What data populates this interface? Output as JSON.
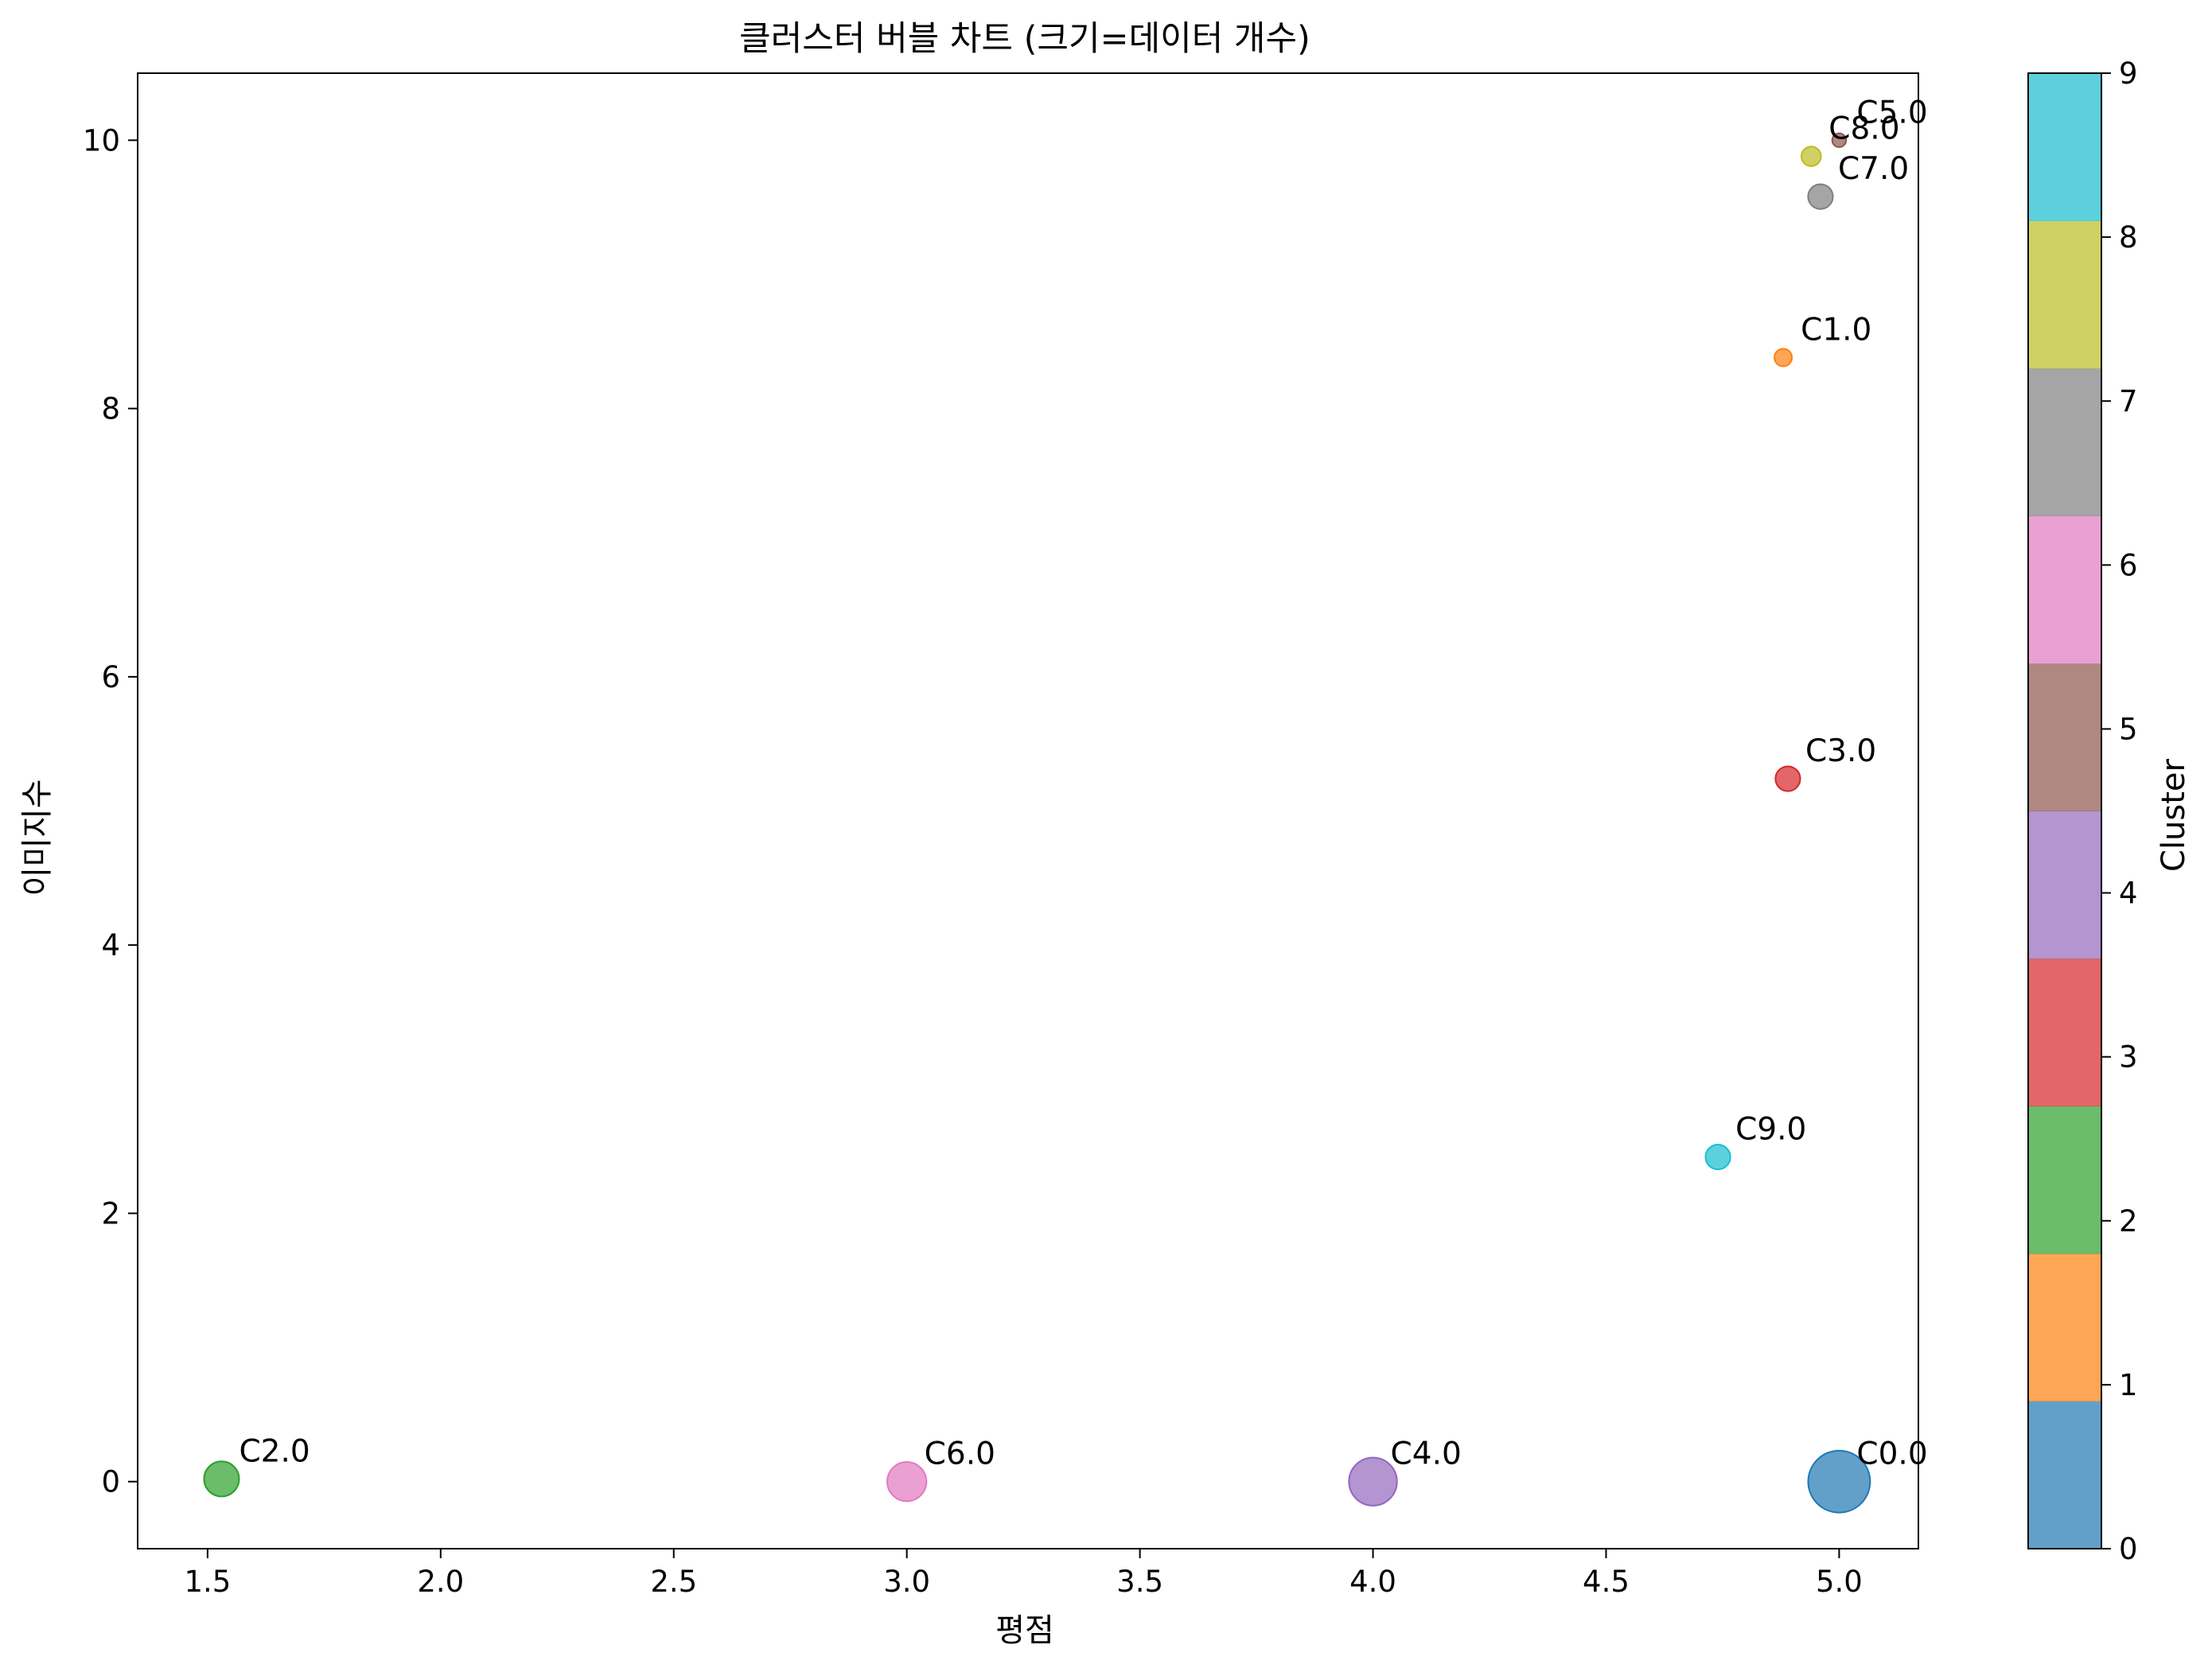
{
  "chart_data": {
    "type": "scatter",
    "title": "클러스터 버블 차트 (크기=데이터 개수)",
    "xlabel": "평점",
    "ylabel": "이미지수",
    "xlim": [
      1.35,
      5.17
    ],
    "ylim": [
      -0.5,
      10.5
    ],
    "xticks": [
      "1.5",
      "2.0",
      "2.5",
      "3.0",
      "3.5",
      "4.0",
      "4.5",
      "5.0"
    ],
    "yticks": [
      "0",
      "2",
      "4",
      "6",
      "8",
      "10"
    ],
    "grid": false,
    "points": [
      {
        "label": "C0.0",
        "cluster": 0,
        "x": 5.0,
        "y": 0.0,
        "size": 5.0
      },
      {
        "label": "C1.0",
        "cluster": 1,
        "x": 4.88,
        "y": 8.38,
        "size": 0.4
      },
      {
        "label": "C2.0",
        "cluster": 2,
        "x": 1.53,
        "y": 0.02,
        "size": 1.6
      },
      {
        "label": "C3.0",
        "cluster": 3,
        "x": 4.89,
        "y": 5.24,
        "size": 0.8
      },
      {
        "label": "C4.0",
        "cluster": 4,
        "x": 4.0,
        "y": 0.0,
        "size": 3.0
      },
      {
        "label": "C5.0",
        "cluster": 5,
        "x": 5.0,
        "y": 10.0,
        "size": 0.25
      },
      {
        "label": "C6.0",
        "cluster": 6,
        "x": 3.0,
        "y": 0.0,
        "size": 2.0
      },
      {
        "label": "C7.0",
        "cluster": 7,
        "x": 4.96,
        "y": 9.58,
        "size": 0.8
      },
      {
        "label": "C8.0",
        "cluster": 8,
        "x": 4.94,
        "y": 9.88,
        "size": 0.5
      },
      {
        "label": "C9.0",
        "cluster": 9,
        "x": 4.74,
        "y": 2.42,
        "size": 0.8
      }
    ],
    "colorbar": {
      "label": "Cluster",
      "range": [
        0,
        9
      ],
      "ticks": [
        "0",
        "1",
        "2",
        "3",
        "4",
        "5",
        "6",
        "7",
        "8",
        "9"
      ],
      "colors": [
        "#1f77b4",
        "#ff7f0e",
        "#2ca02c",
        "#d62728",
        "#9467bd",
        "#8c564b",
        "#e377c2",
        "#7f7f7f",
        "#bcbd22",
        "#17becf"
      ]
    }
  }
}
